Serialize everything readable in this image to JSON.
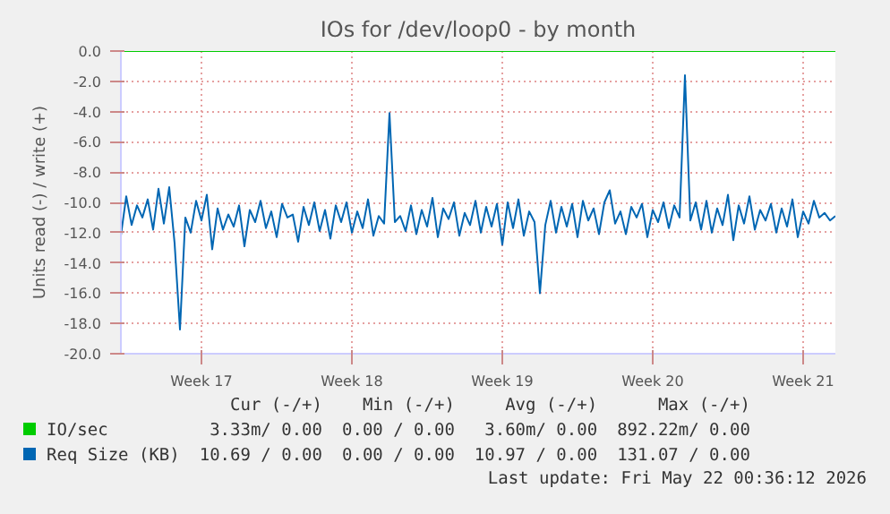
{
  "chart_data": {
    "type": "line",
    "title": "IOs for /dev/loop0 - by month",
    "ylabel": "Units read (-) / write (+)",
    "categories": [
      null,
      null,
      null,
      null,
      null,
      null,
      null,
      null,
      null,
      null,
      null,
      null,
      null,
      null,
      null,
      "Week 17",
      null,
      null,
      null,
      null,
      null,
      null,
      null,
      null,
      null,
      null,
      null,
      null,
      null,
      null,
      null,
      null,
      null,
      null,
      null,
      null,
      null,
      null,
      null,
      null,
      null,
      null,
      null,
      "Week 18",
      null,
      null,
      null,
      null,
      null,
      null,
      null,
      null,
      null,
      null,
      null,
      null,
      null,
      null,
      null,
      null,
      null,
      null,
      null,
      null,
      null,
      null,
      null,
      null,
      null,
      null,
      null,
      "Week 19",
      null,
      null,
      null,
      null,
      null,
      null,
      null,
      null,
      null,
      null,
      null,
      null,
      null,
      null,
      null,
      null,
      null,
      null,
      null,
      null,
      null,
      null,
      null,
      null,
      null,
      null,
      null,
      "Week 20",
      null,
      null,
      null,
      null,
      null,
      null,
      null,
      null,
      null,
      null,
      null,
      null,
      null,
      null,
      null,
      null,
      null,
      null,
      null,
      null,
      null,
      null,
      null,
      null,
      null,
      null,
      null,
      "Week 21",
      null,
      null,
      null,
      null,
      null,
      null
    ],
    "ylim": [
      -20,
      0
    ],
    "yticks": [
      {
        "value": -20,
        "label": "-20.0"
      },
      {
        "value": -18,
        "label": "-18.0"
      },
      {
        "value": -16,
        "label": "-16.0"
      },
      {
        "value": -14,
        "label": "-14.0"
      },
      {
        "value": -12,
        "label": "-12.0"
      },
      {
        "value": -10,
        "label": "-10.0"
      },
      {
        "value": -8,
        "label": "-8.0"
      },
      {
        "value": -6,
        "label": "-6.0"
      },
      {
        "value": -4,
        "label": "-4.0"
      },
      {
        "value": -2,
        "label": "-2.0"
      },
      {
        "value": 0,
        "label": "0.0"
      }
    ],
    "grid": true,
    "legend": "bottom",
    "series": [
      {
        "name": "IO/sec",
        "color": "#00cc00",
        "values": [
          0,
          0,
          0,
          0,
          0,
          0,
          0,
          0,
          0,
          0,
          0,
          0,
          0,
          0,
          0,
          0,
          0,
          0,
          0,
          0,
          0,
          0,
          0,
          0,
          0,
          0,
          0,
          0,
          0,
          0,
          0,
          0,
          0,
          0,
          0,
          0,
          0,
          0,
          0,
          0,
          0,
          0,
          0,
          0,
          0,
          0,
          0,
          0,
          0,
          0,
          0,
          0,
          0,
          0,
          0,
          0,
          0,
          0,
          0,
          0,
          0,
          0,
          0,
          0,
          0,
          0,
          0,
          0,
          0,
          0,
          0,
          0,
          0,
          0,
          0,
          0,
          0,
          0,
          0,
          0,
          0,
          0,
          0,
          0,
          0,
          0,
          0,
          0,
          0,
          0,
          0,
          0,
          0,
          0,
          0,
          0,
          0,
          0,
          0,
          0,
          0,
          0,
          0,
          0,
          0,
          0,
          0,
          0,
          0,
          0,
          0,
          0,
          0,
          0,
          0,
          0,
          0,
          0,
          0,
          0,
          0,
          0,
          0,
          0,
          0,
          0,
          0,
          0,
          0,
          0,
          0,
          0,
          0,
          0
        ]
      },
      {
        "name": "Req Size (KB)",
        "color": "#0066b3",
        "values": [
          -12.2,
          -9.6,
          -11.5,
          -10.2,
          -11.0,
          -9.8,
          -11.8,
          -9.1,
          -11.4,
          -9.0,
          -12.7,
          -18.4,
          -11.0,
          -12.0,
          -9.9,
          -11.2,
          -9.5,
          -13.1,
          -10.4,
          -11.8,
          -10.8,
          -11.6,
          -10.2,
          -12.9,
          -10.5,
          -11.3,
          -9.9,
          -11.7,
          -10.6,
          -12.3,
          -10.1,
          -11.0,
          -10.8,
          -12.6,
          -10.3,
          -11.5,
          -10.0,
          -11.9,
          -10.5,
          -12.4,
          -10.2,
          -11.3,
          -10.0,
          -12.0,
          -10.6,
          -11.7,
          -9.8,
          -12.2,
          -10.9,
          -11.4,
          -4.1,
          -11.3,
          -10.9,
          -11.9,
          -10.2,
          -12.1,
          -10.5,
          -11.6,
          -9.7,
          -12.3,
          -10.4,
          -11.1,
          -10.0,
          -12.2,
          -10.7,
          -11.5,
          -9.9,
          -12.0,
          -10.3,
          -11.6,
          -10.1,
          -12.8,
          -10.0,
          -11.7,
          -9.8,
          -12.2,
          -10.6,
          -11.3,
          -16.0,
          -11.5,
          -9.9,
          -12.0,
          -10.3,
          -11.6,
          -10.1,
          -12.3,
          -9.9,
          -11.2,
          -10.4,
          -12.1,
          -10.0,
          -9.2,
          -11.4,
          -10.6,
          -12.1,
          -10.3,
          -11.0,
          -10.1,
          -12.3,
          -10.5,
          -11.3,
          -10.0,
          -11.7,
          -10.2,
          -11.0,
          -1.6,
          -11.2,
          -10.0,
          -11.8,
          -9.9,
          -12.0,
          -10.4,
          -11.5,
          -9.5,
          -12.5,
          -10.2,
          -11.4,
          -9.6,
          -11.8,
          -10.5,
          -11.2,
          -10.1,
          -12.0,
          -10.4,
          -11.6,
          -9.8,
          -12.3,
          -10.6,
          -11.4,
          -9.9,
          -11.0,
          -10.7,
          -11.2,
          -10.9
        ]
      }
    ],
    "annotations": [
      "Cur (-/+)",
      "Min (-/+)",
      "Avg (-/+)",
      "Max (-/+)",
      "3.33m/ 0.00",
      "0.00 / 0.00",
      "3.60m/ 0.00",
      "892.22m/ 0.00",
      "10.69 / 0.00",
      "0.00 / 0.00",
      "10.97 / 0.00",
      "131.07 / 0.00",
      "Last update: Fri May 22 00:36:12 2026"
    ]
  }
}
